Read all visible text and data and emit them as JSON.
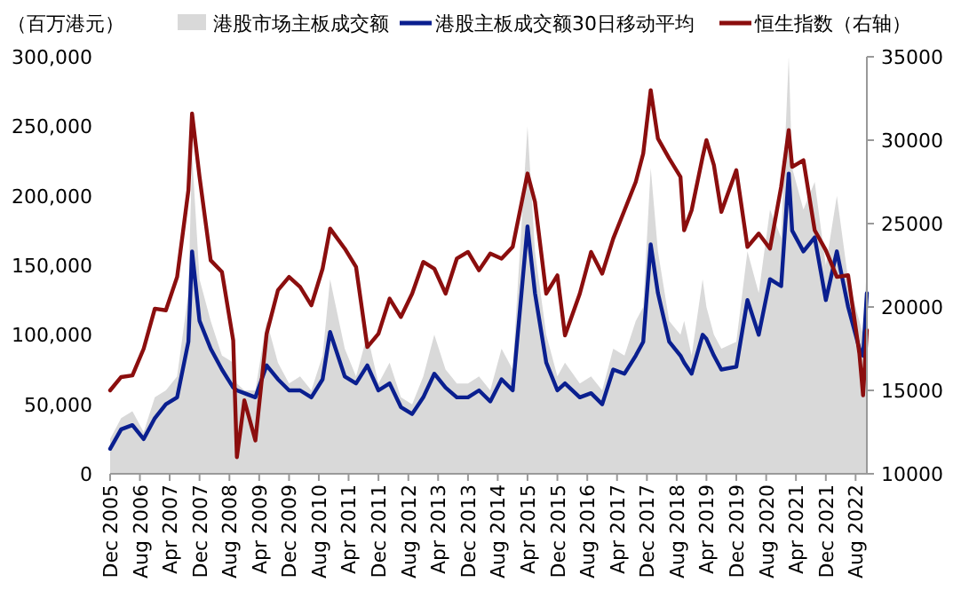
{
  "chart_data": {
    "type": "line",
    "ylabel": "（百万港元）",
    "legend": "top",
    "marker": "none",
    "line_style": "solid",
    "grid": false,
    "x": [
      "2005-12",
      "2006-03",
      "2006-06",
      "2006-09",
      "2006-12",
      "2007-03",
      "2007-06",
      "2007-09",
      "2007-10",
      "2007-12",
      "2008-03",
      "2008-06",
      "2008-09",
      "2008-10",
      "2008-12",
      "2009-03",
      "2009-06",
      "2009-09",
      "2009-12",
      "2010-03",
      "2010-06",
      "2010-09",
      "2010-11",
      "2011-03",
      "2011-06",
      "2011-09",
      "2011-12",
      "2012-03",
      "2012-06",
      "2012-09",
      "2012-12",
      "2013-03",
      "2013-06",
      "2013-09",
      "2013-12",
      "2014-03",
      "2014-06",
      "2014-09",
      "2014-12",
      "2015-04",
      "2015-06",
      "2015-09",
      "2015-12",
      "2016-02",
      "2016-06",
      "2016-09",
      "2016-12",
      "2017-03",
      "2017-06",
      "2017-09",
      "2017-11",
      "2018-01",
      "2018-03",
      "2018-06",
      "2018-09",
      "2018-10",
      "2018-12",
      "2019-03",
      "2019-04",
      "2019-06",
      "2019-08",
      "2019-12",
      "2020-03",
      "2020-06",
      "2020-09",
      "2020-12",
      "2021-02",
      "2021-03",
      "2021-06",
      "2021-09",
      "2021-12",
      "2022-03",
      "2022-06",
      "2022-09",
      "2022-10",
      "2022-11"
    ],
    "xlim": [
      "2005-12",
      "2022-11"
    ],
    "xticks": [
      {
        "value": "2005-12",
        "label": "Dec 2005"
      },
      {
        "value": "2006-08",
        "label": "Aug 2006"
      },
      {
        "value": "2007-04",
        "label": "Apr 2007"
      },
      {
        "value": "2007-12",
        "label": "Dec 2007"
      },
      {
        "value": "2008-08",
        "label": "Aug 2008"
      },
      {
        "value": "2009-04",
        "label": "Apr 2009"
      },
      {
        "value": "2009-12",
        "label": "Dec 2009"
      },
      {
        "value": "2010-08",
        "label": "Aug 2010"
      },
      {
        "value": "2011-04",
        "label": "Apr 2011"
      },
      {
        "value": "2011-12",
        "label": "Dec 2011"
      },
      {
        "value": "2012-08",
        "label": "Aug 2012"
      },
      {
        "value": "2013-04",
        "label": "Apr 2013"
      },
      {
        "value": "2013-12",
        "label": "Dec 2013"
      },
      {
        "value": "2014-08",
        "label": "Aug 2014"
      },
      {
        "value": "2015-04",
        "label": "Apr 2015"
      },
      {
        "value": "2015-12",
        "label": "Dec 2015"
      },
      {
        "value": "2016-08",
        "label": "Aug 2016"
      },
      {
        "value": "2017-04",
        "label": "Apr 2017"
      },
      {
        "value": "2017-12",
        "label": "Dec 2017"
      },
      {
        "value": "2018-08",
        "label": "Aug 2018"
      },
      {
        "value": "2019-04",
        "label": "Apr 2019"
      },
      {
        "value": "2019-12",
        "label": "Dec 2019"
      },
      {
        "value": "2020-08",
        "label": "Aug 2020"
      },
      {
        "value": "2021-04",
        "label": "Apr 2021"
      },
      {
        "value": "2021-12",
        "label": "Dec 2021"
      },
      {
        "value": "2022-08",
        "label": "Aug 2022"
      }
    ],
    "ylim": [
      0,
      300000
    ],
    "yticks": [
      {
        "value": 0,
        "label": "0"
      },
      {
        "value": 50000,
        "label": "50,000"
      },
      {
        "value": 100000,
        "label": "100,000"
      },
      {
        "value": 150000,
        "label": "150,000"
      },
      {
        "value": 200000,
        "label": "200,000"
      },
      {
        "value": 250000,
        "label": "250,000"
      },
      {
        "value": 300000,
        "label": "300,000"
      }
    ],
    "y2lim": [
      10000,
      35000
    ],
    "y2ticks": [
      10000,
      15000,
      20000,
      25000,
      30000,
      35000
    ],
    "series": [
      {
        "name": "港股市场主板成交额",
        "type": "area",
        "color": "#d9d9d9",
        "values": [
          25000,
          40000,
          45000,
          30000,
          55000,
          60000,
          70000,
          130000,
          230000,
          140000,
          110000,
          85000,
          80000,
          65000,
          60000,
          60000,
          110000,
          80000,
          65000,
          70000,
          60000,
          85000,
          140000,
          90000,
          70000,
          100000,
          65000,
          80000,
          55000,
          50000,
          70000,
          100000,
          75000,
          65000,
          65000,
          70000,
          60000,
          90000,
          75000,
          250000,
          160000,
          100000,
          70000,
          80000,
          65000,
          70000,
          60000,
          90000,
          85000,
          110000,
          120000,
          220000,
          160000,
          110000,
          100000,
          110000,
          85000,
          140000,
          120000,
          100000,
          90000,
          95000,
          160000,
          130000,
          190000,
          170000,
          300000,
          220000,
          190000,
          210000,
          150000,
          200000,
          140000,
          110000,
          100000,
          150000
        ]
      },
      {
        "name": "港股主板成交额30日移动平均",
        "color": "#0a1f8f",
        "values": [
          18000,
          32000,
          35000,
          25000,
          40000,
          50000,
          55000,
          95000,
          160000,
          110000,
          90000,
          75000,
          62000,
          60000,
          58000,
          55000,
          78000,
          68000,
          60000,
          60000,
          55000,
          68000,
          102000,
          70000,
          65000,
          78000,
          60000,
          65000,
          48000,
          43000,
          55000,
          72000,
          62000,
          55000,
          55000,
          60000,
          52000,
          68000,
          60000,
          178000,
          130000,
          80000,
          60000,
          65000,
          55000,
          58000,
          50000,
          75000,
          72000,
          85000,
          95000,
          165000,
          130000,
          95000,
          85000,
          80000,
          72000,
          100000,
          97000,
          85000,
          75000,
          77000,
          125000,
          100000,
          140000,
          135000,
          216000,
          175000,
          160000,
          170000,
          125000,
          160000,
          120000,
          90000,
          85000,
          130000
        ]
      },
      {
        "name": "恒生指数（右轴）",
        "axis": "y2",
        "color": "#8b0e0e",
        "values": [
          15000,
          15800,
          15900,
          17500,
          19900,
          19800,
          21800,
          27000,
          31600,
          27800,
          22800,
          22100,
          18000,
          11000,
          14400,
          12000,
          18400,
          21000,
          21800,
          21200,
          20100,
          22300,
          24700,
          23500,
          22400,
          17600,
          18400,
          20500,
          19400,
          20800,
          22700,
          22300,
          20800,
          22900,
          23300,
          22200,
          23200,
          22900,
          23600,
          28000,
          26300,
          20800,
          21900,
          18300,
          20800,
          23300,
          22000,
          24100,
          25800,
          27500,
          29200,
          33000,
          30100,
          28900,
          27800,
          24600,
          25800,
          29000,
          30000,
          28500,
          25700,
          28200,
          23600,
          24400,
          23500,
          27200,
          30600,
          28400,
          28800,
          24600,
          23400,
          21800,
          21900,
          17200,
          14700,
          18600
        ]
      }
    ]
  }
}
